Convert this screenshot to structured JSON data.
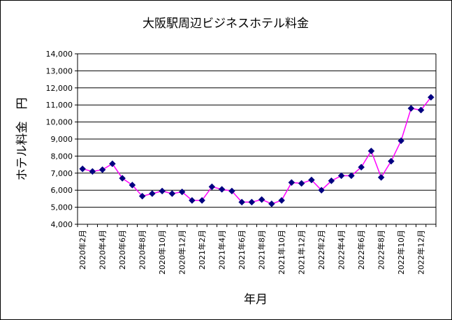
{
  "chart_data": {
    "type": "line",
    "title": "大阪駅周辺ビジネスホテル料金",
    "xlabel": "年月",
    "ylabel": "ホテル料金　円",
    "ylim": [
      4000,
      14000
    ],
    "yticks": [
      4000,
      5000,
      6000,
      7000,
      8000,
      9000,
      10000,
      11000,
      12000,
      13000,
      14000
    ],
    "ytick_labels": [
      "4,000",
      "5,000",
      "6,000",
      "7,000",
      "8,000",
      "9,000",
      "10,000",
      "11,000",
      "12,000",
      "13,000",
      "14,000"
    ],
    "grid": true,
    "legend": "none",
    "categories": [
      "2020年2月",
      "2020年3月",
      "2020年4月",
      "2020年5月",
      "2020年6月",
      "2020年7月",
      "2020年8月",
      "2020年9月",
      "2020年10月",
      "2020年11月",
      "2020年12月",
      "2021年1月",
      "2021年2月",
      "2021年3月",
      "2021年4月",
      "2021年5月",
      "2021年6月",
      "2021年7月",
      "2021年8月",
      "2021年9月",
      "2021年10月",
      "2021年11月",
      "2021年12月",
      "2022年1月",
      "2022年2月",
      "2022年3月",
      "2022年4月",
      "2022年5月",
      "2022年6月",
      "2022年7月",
      "2022年8月",
      "2022年9月",
      "2022年10月",
      "2022年11月",
      "2022年12月",
      "2023年1月"
    ],
    "tick_labels": [
      "2020年2月",
      "2020年4月",
      "2020年6月",
      "2020年8月",
      "2020年10月",
      "2020年12月",
      "2021年2月",
      "2021年4月",
      "2021年6月",
      "2021年8月",
      "2021年10月",
      "2021年12月",
      "2022年2月",
      "2022年4月",
      "2022年6月",
      "2022年8月",
      "2022年10月",
      "2022年12月"
    ],
    "series": [
      {
        "name": "ホテル料金",
        "line_color": "#ff00ff",
        "marker_color": "#000080",
        "values": [
          7250,
          7100,
          7200,
          7550,
          6700,
          6300,
          5650,
          5800,
          5950,
          5800,
          5900,
          5400,
          5400,
          6200,
          6050,
          5950,
          5300,
          5300,
          5450,
          5200,
          5400,
          6450,
          6400,
          6600,
          6000,
          6550,
          6850,
          6850,
          7350,
          8300,
          6750,
          7700,
          8900,
          10800,
          10700,
          11450
        ]
      }
    ]
  }
}
